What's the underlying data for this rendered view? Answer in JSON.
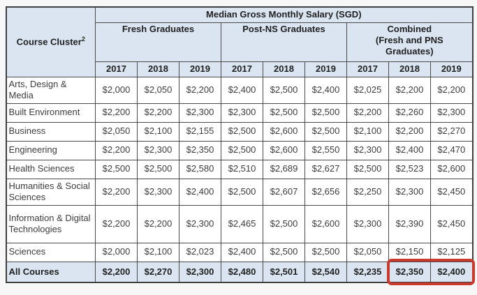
{
  "chart_data": {
    "type": "table",
    "title": "Median Gross Monthly Salary (SGD)",
    "corner": {
      "label": "Course Cluster",
      "superscript": "2"
    },
    "groups": [
      {
        "label": "Fresh Graduates",
        "lines": [
          "Fresh Graduates"
        ]
      },
      {
        "label": "Post-NS Graduates",
        "lines": [
          "Post-NS Graduates"
        ]
      },
      {
        "label": "Combined (Fresh and PNS Graduates)",
        "lines": [
          "Combined",
          "(Fresh and PNS",
          "Graduates)"
        ]
      }
    ],
    "years": [
      "2017",
      "2018",
      "2019"
    ],
    "rows": [
      {
        "cluster": "Arts, Design & Media",
        "values": [
          "$2,000",
          "$2,050",
          "$2,200",
          "$2,400",
          "$2,500",
          "$2,400",
          "$2,025",
          "$2,200",
          "$2,200"
        ]
      },
      {
        "cluster": "Built Environment",
        "values": [
          "$2,200",
          "$2,200",
          "$2,300",
          "$2,300",
          "$2,500",
          "$2,500",
          "$2,200",
          "$2,260",
          "$2,300"
        ]
      },
      {
        "cluster": "Business",
        "values": [
          "$2,050",
          "$2,100",
          "$2,155",
          "$2,500",
          "$2,600",
          "$2,500",
          "$2,100",
          "$2,200",
          "$2,270"
        ]
      },
      {
        "cluster": "Engineering",
        "values": [
          "$2,200",
          "$2,300",
          "$2,350",
          "$2,500",
          "$2,600",
          "$2,550",
          "$2,300",
          "$2,400",
          "$2,470"
        ]
      },
      {
        "cluster": "Health Sciences",
        "values": [
          "$2,500",
          "$2,500",
          "$2,580",
          "$2,510",
          "$2,689",
          "$2,627",
          "$2,500",
          "$2,523",
          "$2,600"
        ]
      },
      {
        "cluster": "Humanities & Social Sciences",
        "values": [
          "$2,200",
          "$2,300",
          "$2,400",
          "$2,500",
          "$2,607",
          "$2,656",
          "$2,250",
          "$2,300",
          "$2,450"
        ]
      },
      {
        "cluster": "Information & Digital Technologies",
        "values": [
          "$2,200",
          "$2,200",
          "$2,300",
          "$2,465",
          "$2,500",
          "$2,600",
          "$2,300",
          "$2,390",
          "$2,450"
        ]
      },
      {
        "cluster": "Sciences",
        "values": [
          "$2,000",
          "$2,100",
          "$2,023",
          "$2,400",
          "$2,500",
          "$2,500",
          "$2,050",
          "$2,150",
          "$2,125"
        ]
      }
    ],
    "footer": {
      "cluster": "All Courses",
      "values": [
        "$2,200",
        "$2,270",
        "$2,300",
        "$2,480",
        "$2,501",
        "$2,540",
        "$2,235",
        "$2,350",
        "$2,400"
      ]
    },
    "highlight": {
      "description": "red rounded box around All Courses Combined 2018 and 2019 values",
      "cells": [
        "$2,350",
        "$2,400"
      ],
      "color": "#c9392c"
    }
  },
  "colors": {
    "header_bg": "#dbe5f1",
    "footer_bg": "#dbe5f1",
    "border": "#4a4a4a",
    "header_text": "#1f1f1f",
    "data_text": "#3d3d3d",
    "highlight_red": "#c9392c",
    "page_bg": "#f7f7f7",
    "cell_bg": "#ffffff"
  }
}
